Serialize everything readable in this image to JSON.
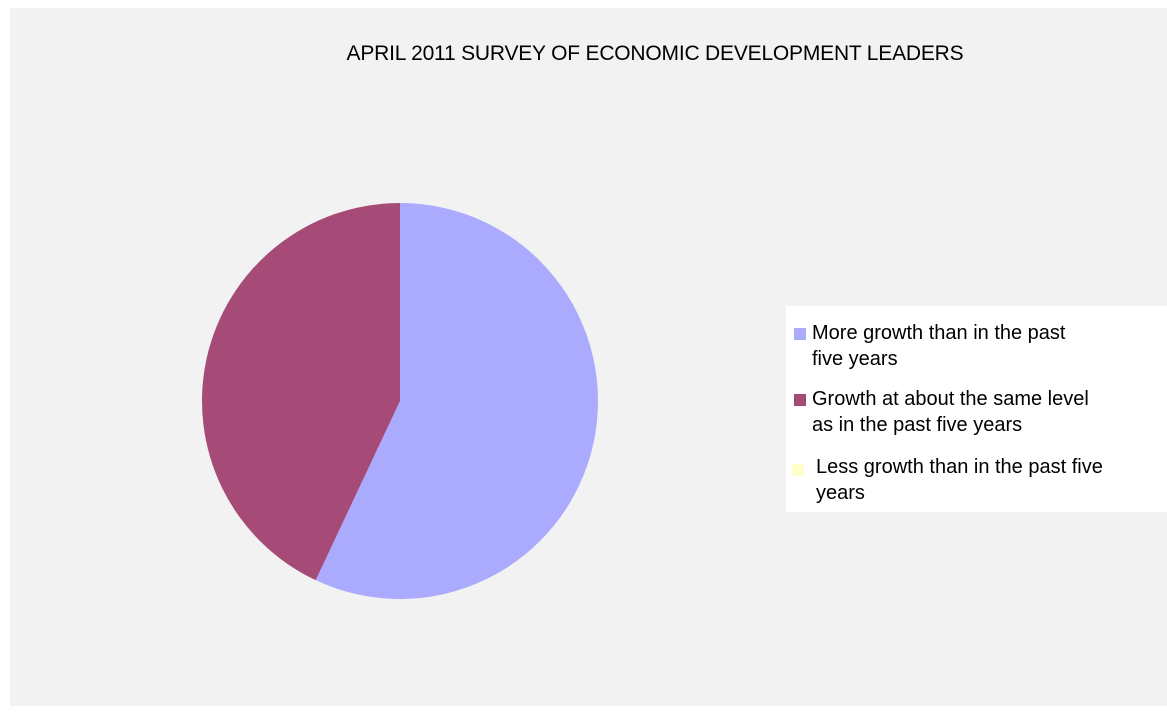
{
  "chart_data": {
    "type": "pie",
    "title": "APRIL 2011 SURVEY OF ECONOMIC DEVELOPMENT LEADERS",
    "categories": [
      "More growth than in the past five years",
      "Growth at about the same level as in the past five years",
      "Less growth than in the past five years"
    ],
    "values": [
      57,
      43,
      0
    ],
    "colors": [
      "#aaaaff",
      "#a64b77",
      "#ffffcc"
    ],
    "legend_position": "right"
  },
  "legend": {
    "items": [
      {
        "line1": "More growth than in the past",
        "line2": "five years",
        "color": "#aaaaff"
      },
      {
        "line1": "Growth at about the same level",
        "line2": "as in the past five years",
        "color": "#a64b77"
      },
      {
        "line1": "Less growth than in the past five",
        "line2": "years",
        "color": "#ffffcc"
      }
    ]
  },
  "colors": {
    "background": "#f2f2f2",
    "legend_background": "#ffffff"
  }
}
